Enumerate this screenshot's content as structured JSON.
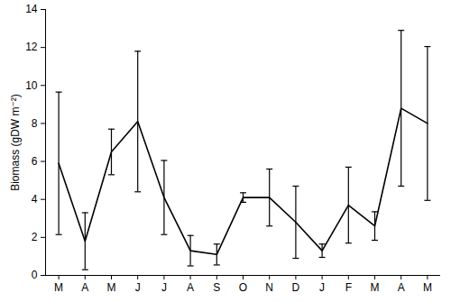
{
  "chart_data": {
    "type": "line",
    "y_label": "Biomass (gDW m⁻²)",
    "categories": [
      "M",
      "A",
      "M",
      "J",
      "J",
      "A",
      "S",
      "O",
      "N",
      "D",
      "J",
      "F",
      "M",
      "A",
      "M"
    ],
    "values": [
      5.9,
      1.8,
      6.5,
      8.1,
      4.1,
      1.3,
      1.1,
      4.1,
      4.1,
      2.8,
      1.3,
      3.7,
      2.6,
      8.8,
      8.0
    ],
    "errors": [
      3.75,
      1.5,
      1.2,
      3.7,
      1.95,
      0.8,
      0.55,
      0.25,
      1.5,
      1.9,
      0.35,
      2.0,
      0.75,
      4.1,
      4.05
    ],
    "color": "#000000",
    "ylim": [
      0,
      14
    ],
    "yticks": [
      0,
      2,
      4,
      6,
      8,
      10,
      12,
      14
    ],
    "grid": false
  }
}
